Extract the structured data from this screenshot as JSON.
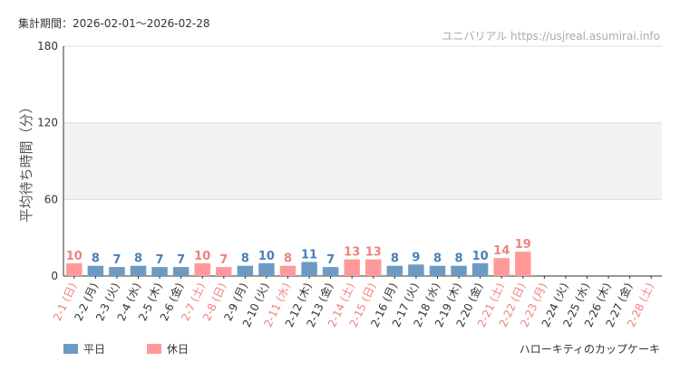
{
  "header": {
    "period_label": "集計期間：2026-02-01〜2026-02-28",
    "site_label": "ユニバリアル  https://usjreal.asumirai.info"
  },
  "caption": "ハローキティのカップケーキ",
  "colors": {
    "weekday": "#6b9ac4",
    "holiday": "#ff9999",
    "weekday_text": "#4a7fb5",
    "holiday_text": "#f08080",
    "band": "#f2f2f2",
    "grid": "#dddddd",
    "axis": "#333333"
  },
  "chart_data": {
    "type": "bar",
    "title": "",
    "xlabel": "",
    "ylabel": "平均待ち時間（分）",
    "ylim": [
      0,
      180
    ],
    "yticks": [
      0,
      60,
      120,
      180
    ],
    "band": [
      60,
      120
    ],
    "legend": [
      {
        "key": "weekday",
        "label": "平日"
      },
      {
        "key": "holiday",
        "label": "休日"
      }
    ],
    "categories": [
      "2-1 (日)",
      "2-2 (月)",
      "2-3 (火)",
      "2-4 (水)",
      "2-5 (木)",
      "2-6 (金)",
      "2-7 (土)",
      "2-8 (日)",
      "2-9 (月)",
      "2-10 (火)",
      "2-11 (水)",
      "2-12 (木)",
      "2-13 (金)",
      "2-14 (土)",
      "2-15 (日)",
      "2-16 (月)",
      "2-17 (火)",
      "2-18 (水)",
      "2-19 (木)",
      "2-20 (金)",
      "2-21 (土)",
      "2-22 (日)",
      "2-23 (月)",
      "2-24 (火)",
      "2-25 (水)",
      "2-26 (木)",
      "2-27 (金)",
      "2-28 (土)"
    ],
    "values": [
      10,
      8,
      7,
      8,
      7,
      7,
      10,
      7,
      8,
      10,
      8,
      11,
      7,
      13,
      13,
      8,
      9,
      8,
      8,
      10,
      14,
      19,
      null,
      null,
      null,
      null,
      null,
      null
    ],
    "day_type": [
      "holiday",
      "weekday",
      "weekday",
      "weekday",
      "weekday",
      "weekday",
      "holiday",
      "holiday",
      "weekday",
      "weekday",
      "holiday",
      "weekday",
      "weekday",
      "holiday",
      "holiday",
      "weekday",
      "weekday",
      "weekday",
      "weekday",
      "weekday",
      "holiday",
      "holiday",
      "holiday",
      "weekday",
      "weekday",
      "weekday",
      "weekday",
      "holiday"
    ]
  }
}
